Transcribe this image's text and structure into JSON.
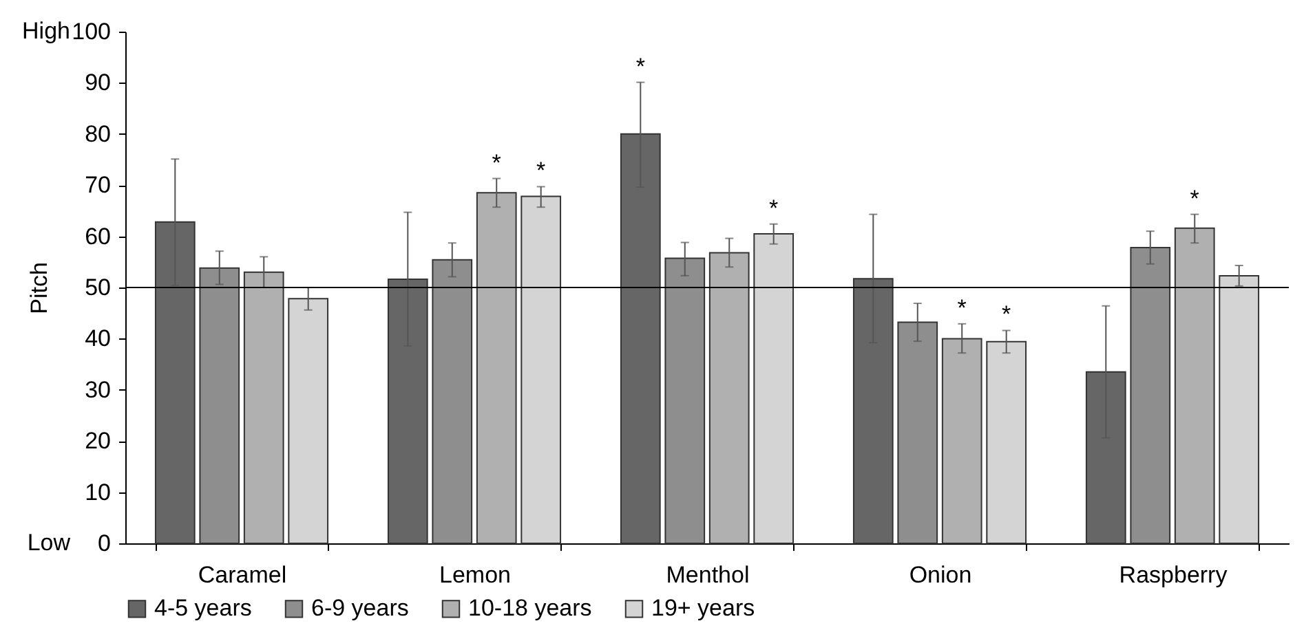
{
  "chart_data": {
    "type": "bar",
    "ylabel": "Pitch",
    "categories": [
      "Caramel",
      "Lemon",
      "Menthol",
      "Onion",
      "Raspberry"
    ],
    "series": [
      {
        "name": "4-5 years",
        "color": "#666666",
        "values": [
          62.8,
          51.6,
          80.0,
          51.7,
          33.5
        ],
        "errors": [
          [
            50.4,
            75.1
          ],
          [
            38.6,
            64.7
          ],
          [
            69.6,
            90.1
          ],
          [
            39.2,
            64.3
          ],
          [
            20.6,
            46.4
          ]
        ],
        "value_labels": [
          null,
          null,
          "*",
          null,
          null
        ]
      },
      {
        "name": "6-9 years",
        "color": "#8e8e8e",
        "values": [
          53.8,
          55.4,
          55.7,
          43.2,
          57.8
        ],
        "errors": [
          [
            50.6,
            57.1
          ],
          [
            52.1,
            58.7
          ],
          [
            52.3,
            58.8
          ],
          [
            39.5,
            46.9
          ],
          [
            54.6,
            61.0
          ]
        ],
        "value_labels": [
          null,
          null,
          null,
          null,
          null
        ]
      },
      {
        "name": "10-18 years",
        "color": "#b0b0b0",
        "values": [
          53.0,
          68.5,
          56.8,
          40.0,
          61.6
        ],
        "errors": [
          [
            50.0,
            56.0
          ],
          [
            65.7,
            71.3
          ],
          [
            54.0,
            59.6
          ],
          [
            37.2,
            42.9
          ],
          [
            58.7,
            64.3
          ]
        ],
        "value_labels": [
          null,
          "*",
          null,
          "*",
          "*"
        ]
      },
      {
        "name": "19+ years",
        "color": "#d4d4d4",
        "values": [
          47.8,
          67.8,
          60.5,
          39.4,
          52.3
        ],
        "errors": [
          [
            45.6,
            50.0
          ],
          [
            65.7,
            69.7
          ],
          [
            58.5,
            62.4
          ],
          [
            37.2,
            41.6
          ],
          [
            50.3,
            54.3
          ]
        ],
        "value_labels": [
          null,
          "*",
          "*",
          "*",
          null
        ]
      }
    ],
    "ylim": [
      0,
      100
    ],
    "yticks": [
      0,
      10,
      20,
      30,
      40,
      50,
      60,
      70,
      80,
      90,
      100
    ],
    "ref_lines": [
      {
        "axis": "y",
        "value": 50,
        "color": "#000000"
      }
    ],
    "annotations": [
      "High",
      "Low"
    ],
    "legend": "bottom"
  }
}
